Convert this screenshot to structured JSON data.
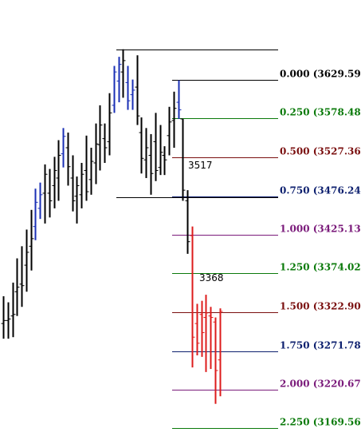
{
  "chart_data": {
    "type": "ohlc",
    "title": "",
    "xlabel": "",
    "ylabel": "",
    "ylim": [
      3150,
      3700
    ],
    "grid": false,
    "legend": "none",
    "fib_levels": [
      {
        "ratio": "0.000",
        "price": "3629.59",
        "label": "0.000 (3629.59)",
        "color": "#000000"
      },
      {
        "ratio": "0.250",
        "price": "3578.48",
        "label": "0.250 (3578.48)",
        "color": "#0b7a0b"
      },
      {
        "ratio": "0.500",
        "price": "3527.36",
        "label": "0.500 (3527.36)",
        "color": "#7a0f0f"
      },
      {
        "ratio": "0.750",
        "price": "3476.24",
        "label": "0.750 (3476.24)",
        "color": "#0c1f6e"
      },
      {
        "ratio": "1.000",
        "price": "3425.13",
        "label": "1.000 (3425.13)",
        "color": "#7a1a7a"
      },
      {
        "ratio": "1.250",
        "price": "3374.02",
        "label": "1.250 (3374.02)",
        "color": "#0b7a0b"
      },
      {
        "ratio": "1.500",
        "price": "3322.90",
        "label": "1.500 (3322.90)",
        "color": "#7a0f0f"
      },
      {
        "ratio": "1.750",
        "price": "3271.78",
        "label": "1.750 (3271.78)",
        "color": "#0c1f6e"
      },
      {
        "ratio": "2.000",
        "price": "3220.67",
        "label": "2.000 (3220.67)",
        "color": "#7a1a7a"
      },
      {
        "ratio": "2.250",
        "price": "3169.56",
        "label": "2.250 (3169.56)",
        "color": "#0b7a0b"
      }
    ],
    "annotations": [
      {
        "text": "3517",
        "value": 3517
      },
      {
        "text": "3368",
        "value": 3368
      }
    ],
    "swing_lines": [
      {
        "name": "swing-high-line",
        "value": 3670
      },
      {
        "name": "secondary-high-line",
        "value": 3629.59
      },
      {
        "name": "swing-low-line",
        "value": 3475
      }
    ],
    "series": [
      {
        "color": "#000000",
        "high": 3344,
        "low": 3288,
        "open": 3308,
        "close": 3312
      },
      {
        "color": "#000000",
        "high": 3336,
        "low": 3288,
        "open": 3312,
        "close": 3314
      },
      {
        "color": "#000000",
        "high": 3362,
        "low": 3290,
        "open": 3318,
        "close": 3320
      },
      {
        "color": "#000000",
        "high": 3394,
        "low": 3318,
        "open": 3350,
        "close": 3356
      },
      {
        "color": "#000000",
        "high": 3410,
        "low": 3330,
        "open": 3360,
        "close": 3358
      },
      {
        "color": "#000000",
        "high": 3432,
        "low": 3350,
        "open": 3385,
        "close": 3402
      },
      {
        "color": "#000000",
        "high": 3458,
        "low": 3378,
        "open": 3410,
        "close": 3420
      },
      {
        "color": "#1a2fb5",
        "high": 3486,
        "low": 3418,
        "open": 3436,
        "close": 3468
      },
      {
        "color": "#1a2fb5",
        "high": 3494,
        "low": 3446,
        "open": 3460,
        "close": 3478
      },
      {
        "color": "#000000",
        "high": 3518,
        "low": 3440,
        "open": 3480,
        "close": 3505
      },
      {
        "color": "#000000",
        "high": 3512,
        "low": 3448,
        "open": 3480,
        "close": 3470
      },
      {
        "color": "#000000",
        "high": 3528,
        "low": 3460,
        "open": 3490,
        "close": 3510
      },
      {
        "color": "#000000",
        "high": 3550,
        "low": 3470,
        "open": 3500,
        "close": 3530
      },
      {
        "color": "#1a2fb5",
        "high": 3566,
        "low": 3514,
        "open": 3532,
        "close": 3555
      },
      {
        "color": "#000000",
        "high": 3560,
        "low": 3490,
        "open": 3540,
        "close": 3515
      },
      {
        "color": "#000000",
        "high": 3530,
        "low": 3456,
        "open": 3500,
        "close": 3470
      },
      {
        "color": "#000000",
        "high": 3502,
        "low": 3440,
        "open": 3476,
        "close": 3490
      },
      {
        "color": "#000000",
        "high": 3520,
        "low": 3460,
        "open": 3478,
        "close": 3505
      },
      {
        "color": "#000000",
        "high": 3556,
        "low": 3470,
        "open": 3510,
        "close": 3482
      },
      {
        "color": "#000000",
        "high": 3540,
        "low": 3478,
        "open": 3498,
        "close": 3522
      },
      {
        "color": "#000000",
        "high": 3572,
        "low": 3492,
        "open": 3520,
        "close": 3545
      },
      {
        "color": "#000000",
        "high": 3596,
        "low": 3510,
        "open": 3544,
        "close": 3570
      },
      {
        "color": "#000000",
        "high": 3572,
        "low": 3520,
        "open": 3552,
        "close": 3540
      },
      {
        "color": "#000000",
        "high": 3612,
        "low": 3530,
        "open": 3548,
        "close": 3586
      },
      {
        "color": "#1a2fb5",
        "high": 3648,
        "low": 3586,
        "open": 3596,
        "close": 3640
      },
      {
        "color": "#1a2fb5",
        "high": 3660,
        "low": 3600,
        "open": 3628,
        "close": 3650
      },
      {
        "color": "#000000",
        "high": 3670,
        "low": 3606,
        "open": 3640,
        "close": 3655
      },
      {
        "color": "#1a2fb5",
        "high": 3648,
        "low": 3590,
        "open": 3626,
        "close": 3602
      },
      {
        "color": "#1a2fb5",
        "high": 3630,
        "low": 3590,
        "open": 3610,
        "close": 3616
      },
      {
        "color": "#000000",
        "high": 3662,
        "low": 3570,
        "open": 3620,
        "close": 3582
      },
      {
        "color": "#000000",
        "high": 3580,
        "low": 3506,
        "open": 3560,
        "close": 3526
      },
      {
        "color": "#000000",
        "high": 3566,
        "low": 3500,
        "open": 3524,
        "close": 3540
      },
      {
        "color": "#000000",
        "high": 3558,
        "low": 3478,
        "open": 3530,
        "close": 3506
      },
      {
        "color": "#000000",
        "high": 3586,
        "low": 3496,
        "open": 3548,
        "close": 3510
      },
      {
        "color": "#000000",
        "high": 3570,
        "low": 3504,
        "open": 3514,
        "close": 3534
      },
      {
        "color": "#000000",
        "high": 3542,
        "low": 3504,
        "open": 3530,
        "close": 3524
      },
      {
        "color": "#000000",
        "high": 3594,
        "low": 3530,
        "open": 3556,
        "close": 3574
      },
      {
        "color": "#000000",
        "high": 3614,
        "low": 3540,
        "open": 3576,
        "close": 3592
      },
      {
        "color": "#1a2fb5",
        "high": 3629,
        "low": 3578,
        "open": 3600,
        "close": 3590
      },
      {
        "color": "#000000",
        "high": 3578,
        "low": 3470,
        "open": 3578,
        "close": 3484
      },
      {
        "color": "#000000",
        "high": 3484,
        "low": 3400,
        "open": 3470,
        "close": 3416
      },
      {
        "color": "#dd1b1b",
        "high": 3436,
        "low": 3250,
        "open": 3424,
        "close": 3290
      },
      {
        "color": "#dd1b1b",
        "high": 3334,
        "low": 3266,
        "open": 3308,
        "close": 3282
      },
      {
        "color": "#dd1b1b",
        "high": 3338,
        "low": 3264,
        "open": 3320,
        "close": 3296
      },
      {
        "color": "#dd1b1b",
        "high": 3346,
        "low": 3244,
        "open": 3316,
        "close": 3322
      },
      {
        "color": "#dd1b1b",
        "high": 3330,
        "low": 3248,
        "open": 3318,
        "close": 3316
      },
      {
        "color": "#dd1b1b",
        "high": 3316,
        "low": 3202,
        "open": 3310,
        "close": 3246
      },
      {
        "color": "#dd1b1b",
        "high": 3328,
        "low": 3212,
        "open": 3260,
        "close": 3324
      }
    ]
  }
}
